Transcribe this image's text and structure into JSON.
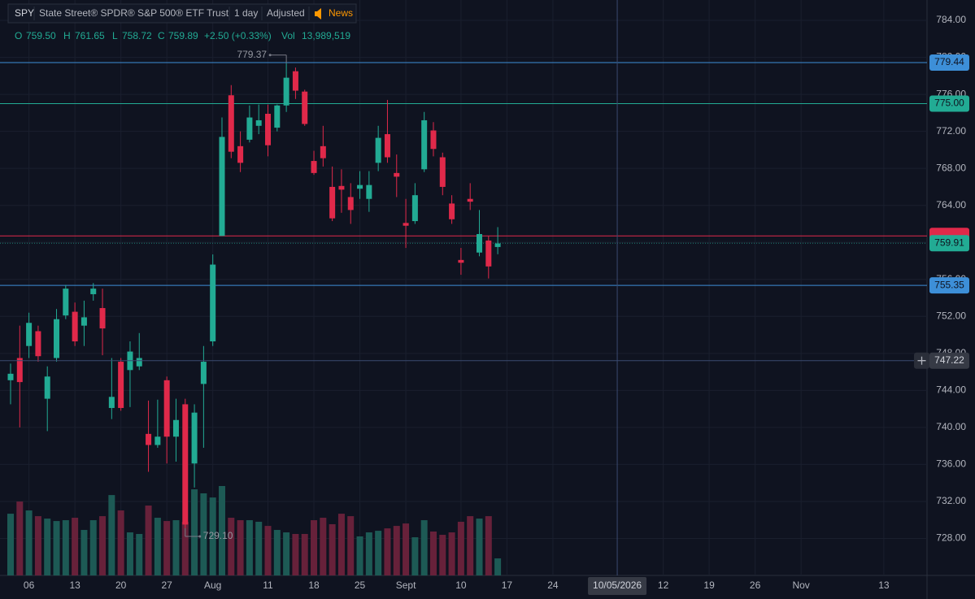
{
  "chart_data": {
    "type": "candlestick",
    "header": {
      "symbol": "SPY",
      "name": "State Street® SPDR® S&P 500® ETF Trust",
      "interval": "1 day",
      "adjustment": "Adjusted",
      "news": "News"
    },
    "legend": {
      "o_label": "O",
      "open": "759.50",
      "h_label": "H",
      "high": "761.65",
      "l_label": "L",
      "low": "758.72",
      "c_label": "C",
      "close": "759.89",
      "change": "+2.50 (+0.33%)",
      "vol_label": "Vol",
      "volume": "13,989,519"
    },
    "open": [
      745.1,
      747.5,
      748.8,
      750.4,
      743.1,
      747.5,
      752.1,
      752.5,
      751.0,
      754.4,
      752.9,
      742.1,
      747.1,
      746.2,
      746.6,
      739.3,
      738.1,
      745.1,
      739.0,
      742.5,
      736.1,
      744.7,
      749.3,
      760.7,
      775.9,
      770.4,
      771.1,
      772.6,
      773.9,
      772.4,
      774.8,
      778.5,
      776.3,
      768.8,
      770.4,
      766.0,
      766.1,
      764.9,
      765.8,
      764.7,
      768.6,
      771.7,
      767.5,
      762.1,
      762.3,
      767.9,
      772.1,
      769.2,
      764.2,
      758.1,
      764.7,
      758.9,
      760.2,
      759.5
    ],
    "high": [
      746.9,
      751.0,
      752.4,
      751.0,
      746.6,
      752.8,
      755.4,
      753.5,
      753.7,
      755.6,
      755.0,
      747.5,
      747.5,
      749.3,
      750.2,
      742.9,
      743.0,
      745.5,
      743.1,
      743.1,
      742.5,
      748.8,
      758.7,
      773.5,
      777.0,
      772.0,
      774.8,
      774.9,
      774.9,
      774.9,
      779.37,
      778.9,
      776.5,
      769.9,
      772.6,
      768.2,
      767.9,
      766.4,
      767.7,
      767.7,
      772.6,
      775.4,
      769.5,
      764.7,
      766.4,
      774.1,
      773.0,
      769.7,
      765.1,
      759.4,
      766.4,
      763.5,
      760.7,
      761.65
    ],
    "low": [
      742.5,
      740.0,
      747.5,
      747.1,
      739.6,
      747.1,
      751.7,
      748.8,
      748.8,
      753.7,
      747.8,
      740.9,
      741.8,
      742.2,
      746.2,
      735.2,
      737.8,
      736.1,
      736.3,
      729.1,
      733.5,
      737.8,
      748.8,
      760.7,
      769.1,
      767.6,
      770.8,
      771.7,
      769.3,
      772.0,
      774.1,
      775.5,
      772.6,
      767.3,
      768.2,
      762.3,
      763.2,
      762.0,
      764.7,
      763.3,
      767.7,
      768.6,
      764.9,
      759.4,
      762.0,
      767.6,
      769.3,
      765.1,
      762.0,
      756.5,
      763.5,
      758.5,
      756.1,
      758.72
    ],
    "close": [
      745.8,
      744.9,
      751.3,
      747.7,
      745.5,
      751.7,
      755.0,
      749.3,
      751.9,
      755.0,
      750.7,
      743.3,
      742.1,
      748.2,
      747.5,
      738.1,
      739.0,
      739.0,
      740.8,
      729.5,
      741.6,
      747.1,
      757.6,
      771.4,
      769.8,
      768.6,
      773.5,
      773.2,
      770.5,
      774.8,
      777.8,
      776.4,
      772.8,
      767.5,
      769.1,
      762.6,
      765.7,
      763.5,
      766.2,
      766.2,
      771.3,
      769.2,
      767.1,
      761.8,
      765.1,
      773.2,
      770.1,
      766.0,
      762.5,
      757.8,
      764.4,
      760.9,
      757.4,
      759.89
    ],
    "volume": [
      50600000,
      60600000,
      53300000,
      48600000,
      46600000,
      44600000,
      45300000,
      47300000,
      37300000,
      45300000,
      48600000,
      65900000,
      53300000,
      35300000,
      34000000,
      57300000,
      47300000,
      44600000,
      45300000,
      44000000,
      70600000,
      67300000,
      63900000,
      73300000,
      47300000,
      45300000,
      45300000,
      44000000,
      40600000,
      37300000,
      35300000,
      34000000,
      34000000,
      45300000,
      47300000,
      42000000,
      50600000,
      48600000,
      32000000,
      35300000,
      36600000,
      38600000,
      40600000,
      42600000,
      31300000,
      45300000,
      36000000,
      33300000,
      35300000,
      44000000,
      48600000,
      46600000,
      48600000,
      13989519
    ],
    "up_color": "#22ab94",
    "down_color": "#e0294a",
    "up_volume_color": "#1d5a55",
    "down_volume_color": "#67213a",
    "xlim": [
      -1.15,
      99.7
    ],
    "ylim": [
      724,
      786.2
    ],
    "yticks": [
      {
        "value": 728,
        "label": "728.00"
      },
      {
        "value": 732,
        "label": "732.00"
      },
      {
        "value": 736,
        "label": "736.00"
      },
      {
        "value": 740,
        "label": "740.00"
      },
      {
        "value": 744,
        "label": "744.00"
      },
      {
        "value": 748,
        "label": "748.00"
      },
      {
        "value": 752,
        "label": "752.00"
      },
      {
        "value": 756,
        "label": "756.00"
      },
      {
        "value": 760,
        "label": "760.00"
      },
      {
        "value": 764,
        "label": "764.00"
      },
      {
        "value": 768,
        "label": "768.00"
      },
      {
        "value": 772,
        "label": "772.00"
      },
      {
        "value": 776,
        "label": "776.00"
      },
      {
        "value": 780,
        "label": "780.00"
      },
      {
        "value": 784,
        "label": "784.00"
      }
    ],
    "xticks": [
      {
        "value": 2,
        "label": "06"
      },
      {
        "value": 7,
        "label": "13"
      },
      {
        "value": 12,
        "label": "20"
      },
      {
        "value": 17,
        "label": "27"
      },
      {
        "value": 22,
        "label": "Aug"
      },
      {
        "value": 28,
        "label": "11"
      },
      {
        "value": 33,
        "label": "18"
      },
      {
        "value": 38,
        "label": "25"
      },
      {
        "value": 43,
        "label": "Sept"
      },
      {
        "value": 49,
        "label": "10"
      },
      {
        "value": 54,
        "label": "17"
      },
      {
        "value": 59,
        "label": "24"
      },
      {
        "value": 71,
        "label": "12"
      },
      {
        "value": 76,
        "label": "19"
      },
      {
        "value": 81,
        "label": "26"
      },
      {
        "value": 86,
        "label": "Nov"
      },
      {
        "value": 95,
        "label": "13"
      }
    ],
    "grid": true,
    "levels": [
      {
        "value": 779.44,
        "label": "779.44",
        "color": "#3d8fd8"
      },
      {
        "value": 775.0,
        "label": "775.00",
        "color": "#22ab94"
      },
      {
        "value": 760.7,
        "color": "#e0294a"
      },
      {
        "value": 755.35,
        "label": "755.35",
        "color": "#3d8fd8"
      }
    ],
    "last_price": {
      "value": 759.91,
      "label": "759.91",
      "color": "#22ab94"
    },
    "crosshair": {
      "x": {
        "value": 66,
        "label": "10/05/2026"
      },
      "y": {
        "value": 747.22,
        "label": "747.22"
      }
    },
    "annotations": [
      {
        "value": 779.37,
        "label": "779.37"
      },
      {
        "value": 729.1,
        "label": "729.10"
      }
    ]
  }
}
